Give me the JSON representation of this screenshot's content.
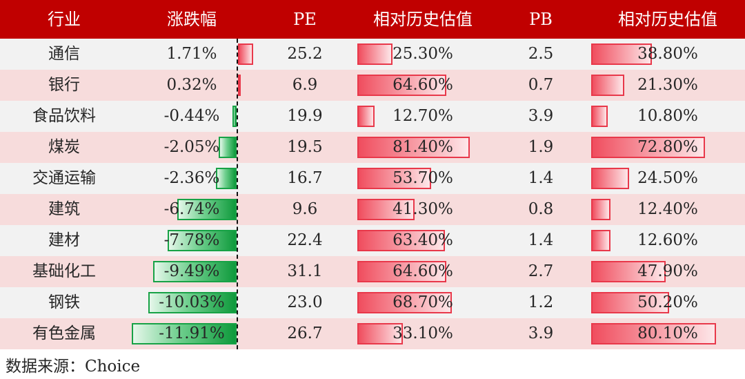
{
  "chart_data": {
    "type": "table",
    "headers": [
      "行业",
      "涨跌幅",
      "PE",
      "相对历史估值",
      "PB",
      "相对历史估值"
    ],
    "rows": [
      {
        "industry": "通信",
        "change": "1.71%",
        "change_value": 1.71,
        "pe": "25.2",
        "pe_rel": "25.30%",
        "pe_rel_value": 25.3,
        "pb": "2.5",
        "pb_rel": "38.80%",
        "pb_rel_value": 38.8
      },
      {
        "industry": "银行",
        "change": "0.32%",
        "change_value": 0.32,
        "pe": "6.9",
        "pe_rel": "64.60%",
        "pe_rel_value": 64.6,
        "pb": "0.7",
        "pb_rel": "21.30%",
        "pb_rel_value": 21.3
      },
      {
        "industry": "食品饮料",
        "change": "-0.44%",
        "change_value": -0.44,
        "pe": "19.9",
        "pe_rel": "12.70%",
        "pe_rel_value": 12.7,
        "pb": "3.9",
        "pb_rel": "10.80%",
        "pb_rel_value": 10.8
      },
      {
        "industry": "煤炭",
        "change": "-2.05%",
        "change_value": -2.05,
        "pe": "19.5",
        "pe_rel": "81.40%",
        "pe_rel_value": 81.4,
        "pb": "1.9",
        "pb_rel": "72.80%",
        "pb_rel_value": 72.8
      },
      {
        "industry": "交通运输",
        "change": "-2.36%",
        "change_value": -2.36,
        "pe": "16.7",
        "pe_rel": "53.70%",
        "pe_rel_value": 53.7,
        "pb": "1.4",
        "pb_rel": "24.50%",
        "pb_rel_value": 24.5
      },
      {
        "industry": "建筑",
        "change": "-6.74%",
        "change_value": -6.74,
        "pe": "9.6",
        "pe_rel": "41.30%",
        "pe_rel_value": 41.3,
        "pb": "0.8",
        "pb_rel": "12.40%",
        "pb_rel_value": 12.4
      },
      {
        "industry": "建材",
        "change": "-7.78%",
        "change_value": -7.78,
        "pe": "22.4",
        "pe_rel": "63.40%",
        "pe_rel_value": 63.4,
        "pb": "1.4",
        "pb_rel": "12.60%",
        "pb_rel_value": 12.6
      },
      {
        "industry": "基础化工",
        "change": "-9.49%",
        "change_value": -9.49,
        "pe": "31.1",
        "pe_rel": "64.60%",
        "pe_rel_value": 64.6,
        "pb": "2.7",
        "pb_rel": "47.90%",
        "pb_rel_value": 47.9
      },
      {
        "industry": "钢铁",
        "change": "-10.03%",
        "change_value": -10.03,
        "pe": "23.0",
        "pe_rel": "68.70%",
        "pe_rel_value": 68.7,
        "pb": "1.2",
        "pb_rel": "50.20%",
        "pb_rel_value": 50.2
      },
      {
        "industry": "有色金属",
        "change": "-11.91%",
        "change_value": -11.91,
        "pe": "26.7",
        "pe_rel": "33.10%",
        "pe_rel_value": 33.1,
        "pb": "3.9",
        "pb_rel": "80.10%",
        "pb_rel_value": 80.1
      }
    ],
    "colors": {
      "header_bg": "#c00000",
      "header_text": "#ffffff",
      "row_odd": "#f2f2f2",
      "row_even": "#f7dcdc",
      "bar_up": "#e8384a",
      "bar_down": "#17a246"
    }
  },
  "source": "数据来源：Choice"
}
